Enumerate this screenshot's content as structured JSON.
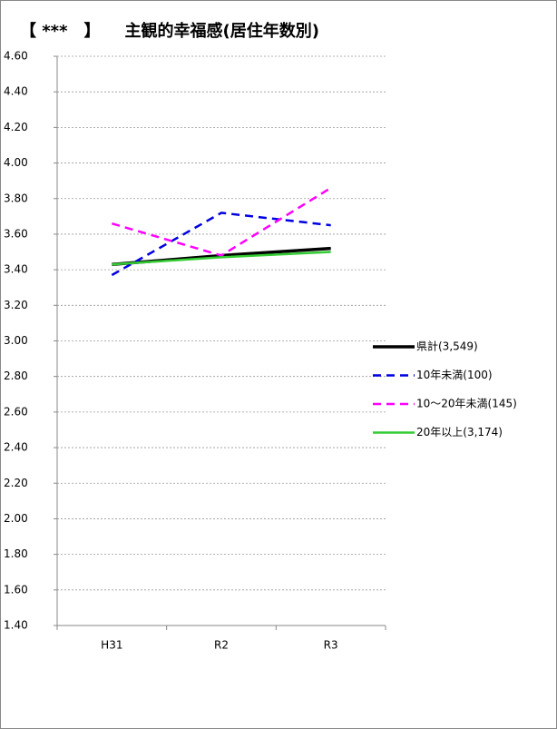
{
  "chart_data": {
    "type": "line",
    "title": "【 ***　】　　主観的幸福感(居住年数別)",
    "categories": [
      "H31",
      "R2",
      "R3"
    ],
    "ylim": [
      1.4,
      4.6
    ],
    "yticks": [
      {
        "value": 1.4,
        "label": "1.40"
      },
      {
        "value": 1.6,
        "label": "1.60"
      },
      {
        "value": 1.8,
        "label": "1.80"
      },
      {
        "value": 2.0,
        "label": "2.00"
      },
      {
        "value": 2.2,
        "label": "2.20"
      },
      {
        "value": 2.4,
        "label": "2.40"
      },
      {
        "value": 2.6,
        "label": "2.60"
      },
      {
        "value": 2.8,
        "label": "2.80"
      },
      {
        "value": 3.0,
        "label": "3.00"
      },
      {
        "value": 3.2,
        "label": "3.20"
      },
      {
        "value": 3.4,
        "label": "3.40"
      },
      {
        "value": 3.6,
        "label": "3.60"
      },
      {
        "value": 3.8,
        "label": "3.80"
      },
      {
        "value": 4.0,
        "label": "4.00"
      },
      {
        "value": 4.2,
        "label": "4.20"
      },
      {
        "value": 4.4,
        "label": "4.40"
      },
      {
        "value": 4.6,
        "label": "4.60"
      }
    ],
    "grid": true,
    "legend": "right",
    "series": [
      {
        "name": "県計(3,549)",
        "color": "#000000",
        "dash": false,
        "values": [
          3.43,
          3.48,
          3.52
        ]
      },
      {
        "name": "10年未満(100)",
        "color": "#0000e0",
        "dash": true,
        "values": [
          3.37,
          3.72,
          3.65
        ]
      },
      {
        "name": "10〜20年未満(145)",
        "color": "#ff00ff",
        "dash": true,
        "values": [
          3.66,
          3.48,
          3.86
        ]
      },
      {
        "name": "20年以上(3,174)",
        "color": "#33cc33",
        "dash": false,
        "values": [
          3.43,
          3.47,
          3.5
        ]
      }
    ]
  }
}
